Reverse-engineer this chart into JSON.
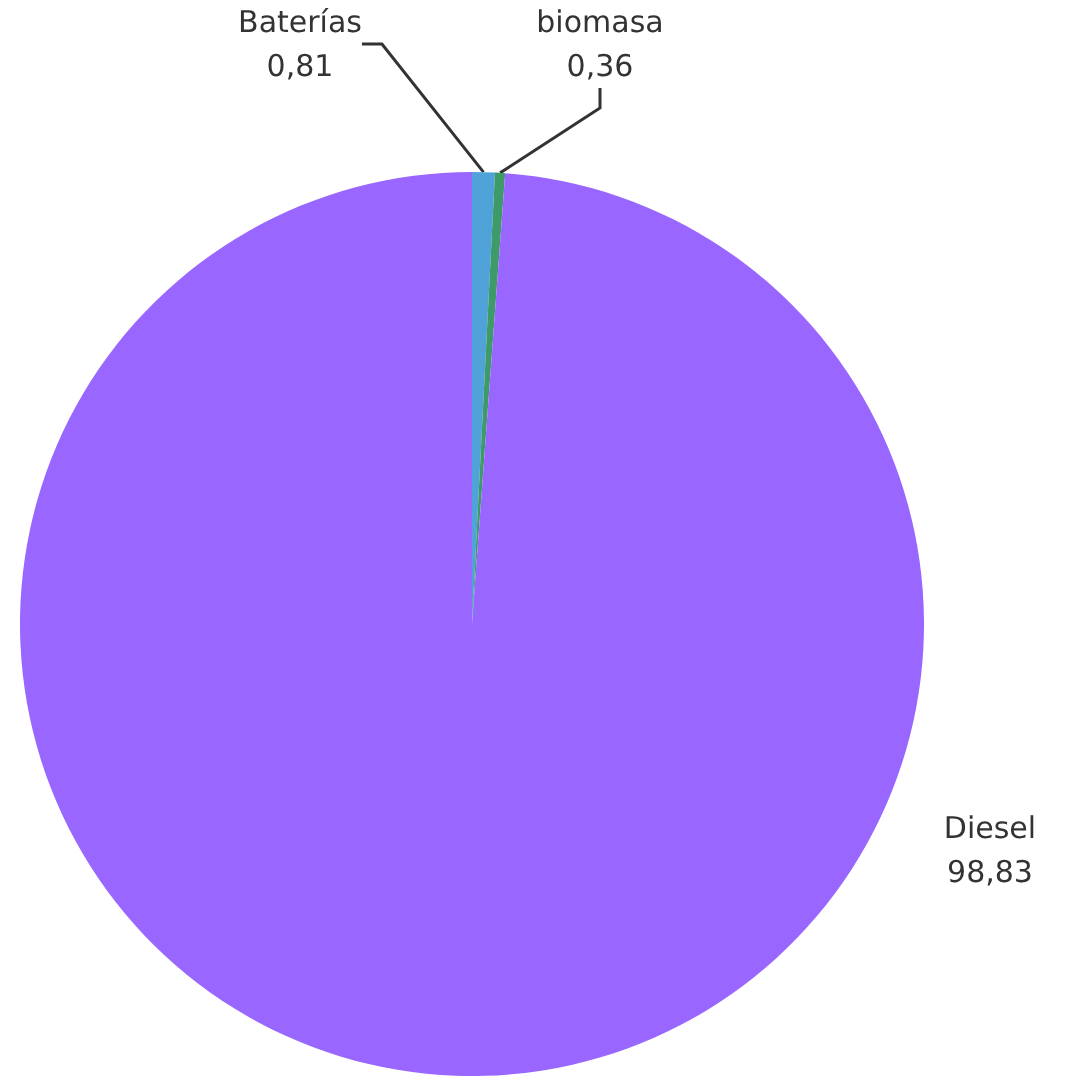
{
  "chart_data": {
    "type": "pie",
    "categories": [
      "Baterías",
      "biomasa",
      "Diesel"
    ],
    "values": [
      0.81,
      0.36,
      98.83
    ],
    "colors": [
      "#4fa3d9",
      "#3f9a6a",
      "#9966ff"
    ],
    "value_labels": [
      "0,81",
      "0,36",
      "98,83"
    ]
  }
}
